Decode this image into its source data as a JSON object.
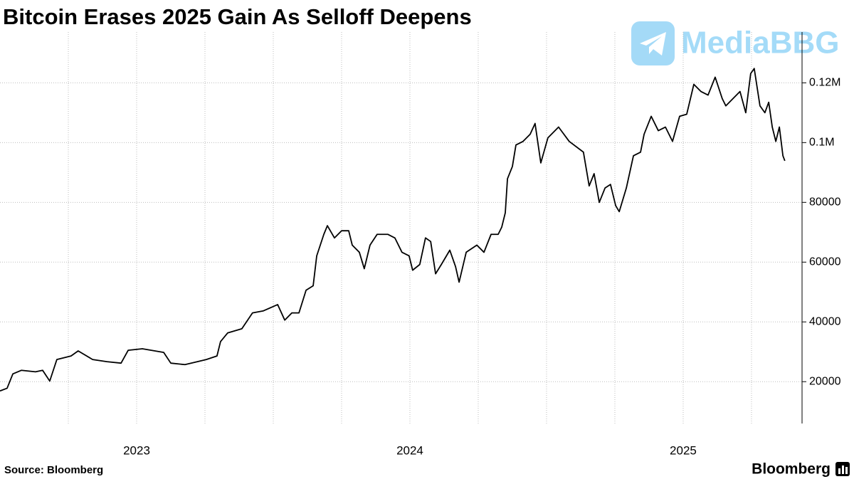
{
  "chart_data": {
    "type": "line",
    "title": "Bitcoin Erases 2025 Gain As Selloff Deepens",
    "source": "Source: Bloomberg",
    "brand": "Bloomberg",
    "watermark": "MediaBBG",
    "color": "#000000",
    "x": [
      2023.0,
      2023.026,
      2023.047,
      2023.078,
      2023.13,
      2023.156,
      2023.182,
      2023.195,
      2023.208,
      2023.26,
      2023.286,
      2023.339,
      2023.391,
      2023.443,
      2023.469,
      2023.521,
      2023.599,
      2023.625,
      2023.677,
      2023.755,
      2023.794,
      2023.807,
      2023.833,
      2023.885,
      2023.924,
      2023.964,
      2024.016,
      2024.042,
      2024.068,
      2024.094,
      2024.12,
      2024.146,
      2024.159,
      2024.185,
      2024.198,
      2024.224,
      2024.25,
      2024.276,
      2024.289,
      2024.315,
      2024.333,
      2024.354,
      2024.38,
      2024.419,
      2024.445,
      2024.471,
      2024.497,
      2024.51,
      2024.536,
      2024.557,
      2024.576,
      2024.594,
      2024.615,
      2024.646,
      2024.667,
      2024.68,
      2024.706,
      2024.745,
      2024.771,
      2024.797,
      2024.823,
      2024.836,
      2024.849,
      2024.857,
      2024.875,
      2024.888,
      2024.914,
      2024.94,
      2024.958,
      2024.979,
      2025.005,
      2025.044,
      2025.083,
      2025.135,
      2025.156,
      2025.174,
      2025.193,
      2025.214,
      2025.234,
      2025.253,
      2025.266,
      2025.292,
      2025.318,
      2025.344,
      2025.357,
      2025.383,
      2025.409,
      2025.435,
      2025.461,
      2025.487,
      2025.513,
      2025.539,
      2025.565,
      2025.591,
      2025.617,
      2025.643,
      2025.656,
      2025.682,
      2025.708,
      2025.729,
      2025.747,
      2025.76,
      2025.781,
      2025.799,
      2025.813,
      2025.826,
      2025.839,
      2025.852,
      2025.865,
      2025.872
    ],
    "values": [
      16900,
      17800,
      22600,
      23800,
      23300,
      23800,
      20200,
      23800,
      27400,
      28600,
      30300,
      27400,
      26700,
      26200,
      30500,
      31000,
      29800,
      26200,
      25700,
      27400,
      28600,
      33400,
      36300,
      37700,
      43000,
      43700,
      45800,
      40600,
      43000,
      43000,
      50600,
      52100,
      62100,
      69300,
      72200,
      68100,
      70500,
      70500,
      65700,
      63300,
      57800,
      65700,
      69300,
      69300,
      68100,
      63300,
      62100,
      57300,
      59200,
      68100,
      66900,
      56100,
      59200,
      64000,
      58500,
      53300,
      63300,
      65700,
      63300,
      69300,
      69300,
      71700,
      76500,
      87900,
      92000,
      99200,
      100400,
      102800,
      106400,
      93200,
      101600,
      105200,
      100400,
      96800,
      85500,
      89600,
      80000,
      84800,
      86000,
      78900,
      76900,
      84800,
      95600,
      96800,
      102800,
      108800,
      104000,
      105200,
      100400,
      108800,
      109500,
      119500,
      117100,
      115900,
      121900,
      114700,
      112300,
      114700,
      117100,
      110000,
      123100,
      124800,
      112300,
      110000,
      113500,
      105200,
      100400,
      105200,
      95600,
      93900
    ],
    "xlim": [
      2023.0,
      2025.935
    ],
    "xticks": [
      {
        "value": 2023.5,
        "label": "2023"
      },
      {
        "value": 2024.5,
        "label": "2024"
      },
      {
        "value": 2025.5,
        "label": "2025"
      }
    ],
    "xgrid": [
      2023.25,
      2023.5,
      2023.75,
      2024.0,
      2024.25,
      2024.5,
      2024.75,
      2025.0,
      2025.25,
      2025.5,
      2025.75
    ],
    "ylim": [
      6000,
      137000
    ],
    "yticks": [
      20000,
      40000,
      60000,
      80000,
      {
        "value": 100000,
        "label": "0.1M"
      },
      {
        "value": 120000,
        "label": "0.12M"
      }
    ],
    "grid": true
  }
}
